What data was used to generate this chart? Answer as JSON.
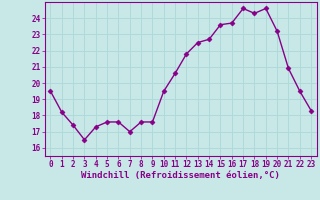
{
  "x": [
    0,
    1,
    2,
    3,
    4,
    5,
    6,
    7,
    8,
    9,
    10,
    11,
    12,
    13,
    14,
    15,
    16,
    17,
    18,
    19,
    20,
    21,
    22,
    23
  ],
  "y": [
    19.5,
    18.2,
    17.4,
    16.5,
    17.3,
    17.6,
    17.6,
    17.0,
    17.6,
    17.6,
    19.5,
    20.6,
    21.8,
    22.5,
    22.7,
    23.6,
    23.7,
    24.6,
    24.3,
    24.6,
    23.2,
    20.9,
    19.5,
    18.3
  ],
  "line_color": "#880088",
  "marker": "D",
  "marker_size": 2.5,
  "bg_color": "#c8e8e8",
  "grid_color": "#aadddd",
  "xlabel": "Windchill (Refroidissement éolien,°C)",
  "ylim": [
    15.5,
    25.0
  ],
  "xlim": [
    -0.5,
    23.5
  ],
  "yticks": [
    16,
    17,
    18,
    19,
    20,
    21,
    22,
    23,
    24
  ],
  "xticks": [
    0,
    1,
    2,
    3,
    4,
    5,
    6,
    7,
    8,
    9,
    10,
    11,
    12,
    13,
    14,
    15,
    16,
    17,
    18,
    19,
    20,
    21,
    22,
    23
  ],
  "tick_color": "#880088",
  "tick_fontsize": 5.5,
  "xlabel_fontsize": 6.5,
  "label_color": "#880088",
  "line_width": 1.0
}
